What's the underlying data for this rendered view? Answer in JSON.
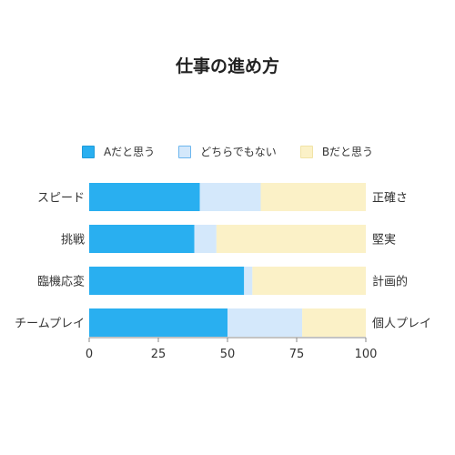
{
  "chart_data": {
    "type": "bar",
    "orientation": "horizontal",
    "stacked": true,
    "title": "仕事の進め方",
    "categories": [
      "スピード",
      "挑戦",
      "臨機応変",
      "チームプレイ"
    ],
    "right_labels": [
      "正確さ",
      "堅実",
      "計画的",
      "個人プレイ"
    ],
    "series": [
      {
        "name": "Aだと思う",
        "color": "#29aff0",
        "values": [
          40,
          38,
          56,
          50
        ]
      },
      {
        "name": "どちらでもない",
        "color": "#d4e8fb",
        "values": [
          22,
          8,
          3,
          27
        ]
      },
      {
        "name": "Bだと思う",
        "color": "#fbf1c7",
        "values": [
          38,
          54,
          41,
          23
        ]
      }
    ],
    "xlim": [
      0,
      100
    ],
    "xticks": [
      0,
      25,
      50,
      75,
      100
    ],
    "legend_position": "top",
    "grid": false
  }
}
